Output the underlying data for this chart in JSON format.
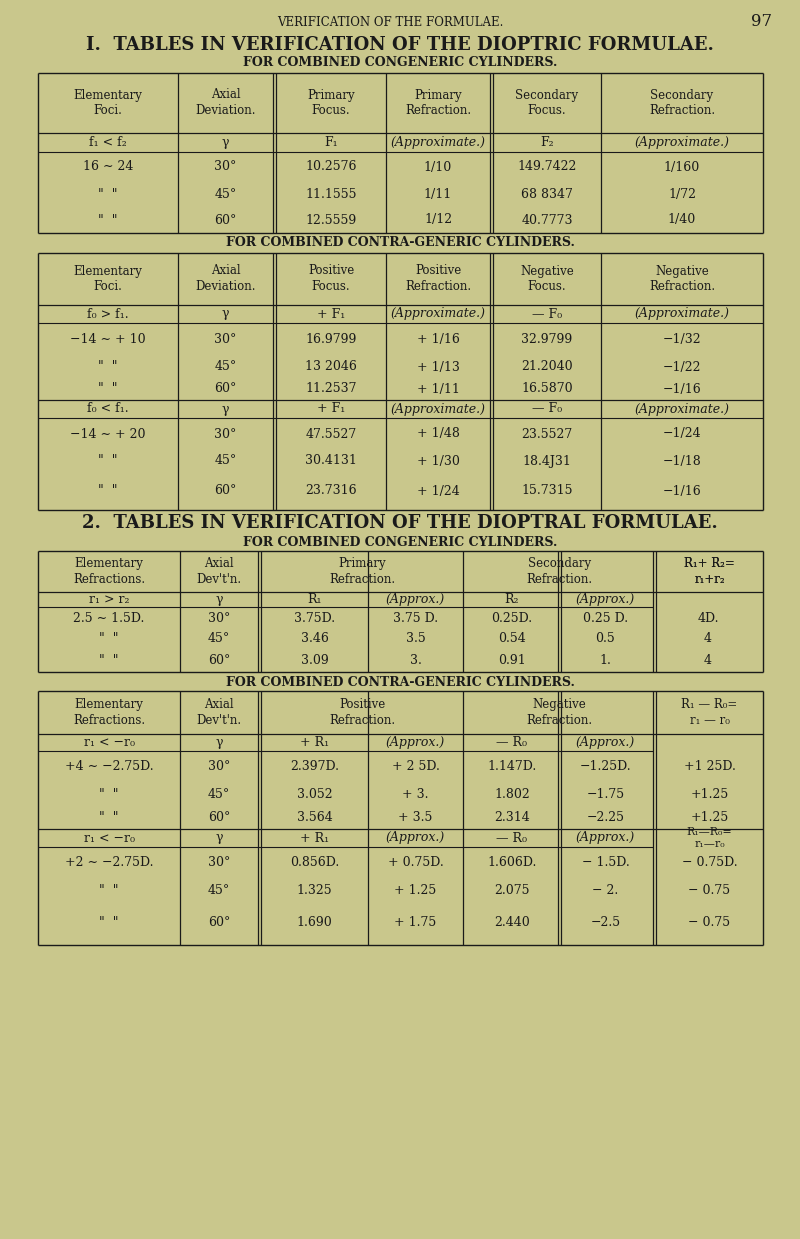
{
  "bg_color": "#c9c78c",
  "text_color": "#1a1a1a",
  "page_header": "VERIFICATION OF THE FORMULAE.",
  "page_number": "97",
  "section1_title": "I.  TABLES IN VERIFICATION OF THE DIOPTRIC FORMULAE.",
  "section1_sub1": "FOR COMBINED CONGENERIC CYLINDERS.",
  "table1_headers": [
    "Elementary\nFoci.",
    "Axial\nDeviation.",
    "Primary\nFocus.",
    "Primary\nRefraction.",
    "Secondary\nFocus.",
    "Secondary\nRefraction."
  ],
  "table1_subheaders": [
    "f₁ < f₂",
    "γ",
    "F₁",
    "(Approximate.)",
    "F₂",
    "(Approximate.)"
  ],
  "table1_rows": [
    [
      "16 ∼ 24",
      "30°",
      "10.2576",
      "1/10",
      "149.7422",
      "1/160"
    ],
    [
      "\"  \"",
      "45°",
      "11.1555",
      "1/11",
      "68 8347",
      "1/72"
    ],
    [
      "\"  \"",
      "60°",
      "12.5559",
      "1/12",
      "40.7773",
      "1/40"
    ]
  ],
  "section1_sub2": "FOR COMBINED CONTRA-GENERIC CYLINDERS.",
  "table2_headers": [
    "Elementary\nFoci.",
    "Axial\nDeviation.",
    "Positive\nFocus.",
    "Positive\nRefraction.",
    "Negative\nFocus.",
    "Negative\nRefraction."
  ],
  "table2_subheaders_a": [
    "f₀ > f₁.",
    "γ",
    "+ F₁",
    "(Approximate.)",
    "— F₀",
    "(Approximate.)"
  ],
  "table2_rows_a": [
    [
      "−14 ∼ + 10",
      "30°",
      "16.9799",
      "+ 1/16",
      "32.9799",
      "−1/32"
    ],
    [
      "\"  \"",
      "45°",
      "13 2046",
      "+ 1/13",
      "21.2040",
      "−1/22"
    ],
    [
      "\"  \"",
      "60°",
      "11.2537",
      "+ 1/11",
      "16.5870",
      "−1/16"
    ]
  ],
  "table2_subheaders_b": [
    "f₀ < f₁.",
    "γ",
    "+ F₁",
    "(Approximate.)",
    "— F₀",
    "(Approximate.)"
  ],
  "table2_rows_b": [
    [
      "−14 ∼ + 20",
      "30°",
      "47.5527",
      "+ 1/48",
      "23.5527",
      "−1/24"
    ],
    [
      "\"  \"",
      "45°",
      "30.4131",
      "+ 1/30",
      "18.4J31",
      "−1/18"
    ],
    [
      "\"  \"",
      "60°",
      "23.7316",
      "+ 1/24",
      "15.7315",
      "−1/16"
    ]
  ],
  "section2_title": "2.  TABLES IN VERIFICATION OF THE DIOPTRAL FORMULAE.",
  "section2_sub1": "FOR COMBINED CONGENERIC CYLINDERS.",
  "table3_headers_left": [
    "Elementary\nRefractions.",
    "Axial\nDev't'n."
  ],
  "table3_headers_mid1": "Primary\nRefraction.",
  "table3_headers_mid2": "Secondary\nRefraction.",
  "table3_headers_right": "R₁+ R₂=\nr₁+r₂",
  "table3_subheaders": [
    "r₁ > r₂",
    "γ",
    "R₁",
    "(Approx.)",
    "R₂",
    "(Approx.)",
    ""
  ],
  "table3_rows": [
    [
      "2.5 ∼ 1.5D.",
      "30°",
      "3.75D.",
      "3.75 D.",
      "0.25D.",
      "0.25 D.",
      "4D."
    ],
    [
      "\"  \"",
      "45°",
      "3.46",
      "3.5",
      "0.54",
      "0.5",
      "4"
    ],
    [
      "\"  \"",
      "60°",
      "3.09",
      "3.",
      "0.91",
      "1.",
      "4"
    ]
  ],
  "section2_sub2": "FOR COMBINED CONTRA-GENERIC CYLINDERS.",
  "table4_headers_right_a": "R₁ — R₀=\nr₁ — r₀",
  "table4_subheaders_a": [
    "r₁ < −r₀",
    "γ",
    "+ R₁",
    "(Approx.)",
    "— R₀",
    "(Approx.)",
    ""
  ],
  "table4_rows_a": [
    [
      "+4 ∼ −2.75D.",
      "30°",
      "2.397D.",
      "+ 2 5D.",
      "1.147D.",
      "−1.25D.",
      "+1 25D."
    ],
    [
      "\"  \"",
      "45°",
      "3.052",
      "+ 3.",
      "1.802",
      "−1.75",
      "+1.25"
    ],
    [
      "\"  \"",
      "60°",
      "3.564",
      "+ 3.5",
      "2.314",
      "−2.25",
      "+1.25"
    ]
  ],
  "table4_subheaders_b": [
    "r₁ < −r₀",
    "γ",
    "+ R₁",
    "(Approx.)",
    "— R₀",
    "(Approx.)",
    "R₁—R₀=\nr₁—r₀"
  ],
  "table4_rows_b": [
    [
      "+2 ∼ −2.75D.",
      "30°",
      "0.856D.",
      "+ 0.75D.",
      "1.606D.",
      "− 1.5D.",
      "− 0.75D."
    ],
    [
      "\"  \"",
      "45°",
      "1.325",
      "+ 1.25",
      "2.075",
      "− 2.",
      "− 0.75"
    ],
    [
      "\"  \"",
      "60°",
      "1.690",
      "+ 1.75",
      "2.440",
      "−2.5",
      "− 0.75"
    ]
  ]
}
